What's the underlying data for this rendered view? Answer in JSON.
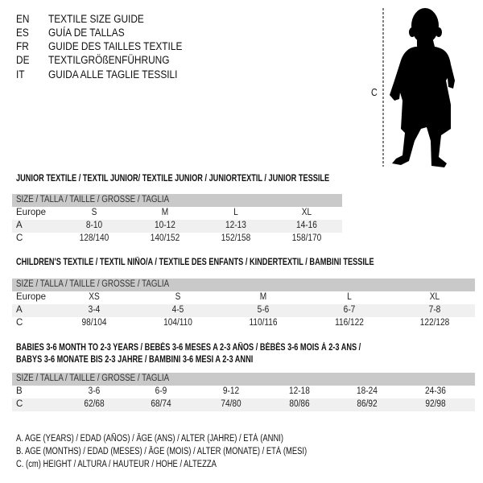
{
  "languages": [
    {
      "code": "EN",
      "text": "TEXTILE SIZE GUIDE"
    },
    {
      "code": "ES",
      "text": "GUÍA DE TALLAS"
    },
    {
      "code": "FR",
      "text": "GUIDE DES TAILLES TEXTILE"
    },
    {
      "code": "DE",
      "text": "TEXTILGRÖßENFÜHRUNG"
    },
    {
      "code": "IT",
      "text": "GUIDA ALLE TAGLIE TESSILI"
    }
  ],
  "figure": {
    "measure_label": "C",
    "icon": "child-silhouette"
  },
  "size_header": "SIZE / TALLA / TAILLE / GRÖSSE / TAGLIA",
  "junior": {
    "title": "JUNIOR TEXTILE / TEXTIL JUNIOR/ TEXTILE JUNIOR / JUNIORTEXTIL / JUNIOR TESSILE",
    "rows": [
      {
        "label": "Europe",
        "values": [
          "S",
          "M",
          "L",
          "XL"
        ]
      },
      {
        "label": "A",
        "values": [
          "8-10",
          "10-12",
          "12-13",
          "14-16"
        ]
      },
      {
        "label": "C",
        "values": [
          "128/140",
          "140/152",
          "152/158",
          "158/170"
        ]
      }
    ]
  },
  "children": {
    "title": "CHILDREN'S TEXTILE / TEXTIL NIÑO/A / TEXTILE DES ENFANTS / KINDERTEXTIL / BAMBINI TESSILE",
    "rows": [
      {
        "label": "Europe",
        "values": [
          "XS",
          "S",
          "M",
          "L",
          "XL"
        ]
      },
      {
        "label": "A",
        "values": [
          "3-4",
          "4-5",
          "5-6",
          "6-7",
          "7-8"
        ]
      },
      {
        "label": "C",
        "values": [
          "98/104",
          "104/110",
          "110/116",
          "116/122",
          "122/128"
        ]
      }
    ]
  },
  "babies": {
    "title_line1": "BABIES 3-6 MONTH TO 2-3 YEARS / BEBÉS 3-6 MESES A 2-3 AÑOS / BÉBÉS 3-6 MOIS À 2-3 ANS /",
    "title_line2": "BABYS 3-6 MONATE BIS 2-3 JAHRE / BAMBINI 3-6 MESI A 2-3 ANNI",
    "rows": [
      {
        "label": "B",
        "values": [
          "3-6",
          "6-9",
          "9-12",
          "12-18",
          "18-24",
          "24-36"
        ]
      },
      {
        "label": "C",
        "values": [
          "62/68",
          "68/74",
          "74/80",
          "80/86",
          "86/92",
          "92/98"
        ]
      }
    ]
  },
  "legend": [
    "A. AGE (YEARS) / EDAD (AÑOS) / ÂGE (ANS) / ALTER (JAHRE) / ETÀ (ANNI)",
    "B. AGE (MONTHS) / EDAD (MESES) / ÂGE (MOIS) / ALTER (MONATE) / ETÀ (MESI)",
    "C. (cm) HEIGHT / ALTURA / HAUTEUR / HÖHE / ALTEZZA"
  ]
}
